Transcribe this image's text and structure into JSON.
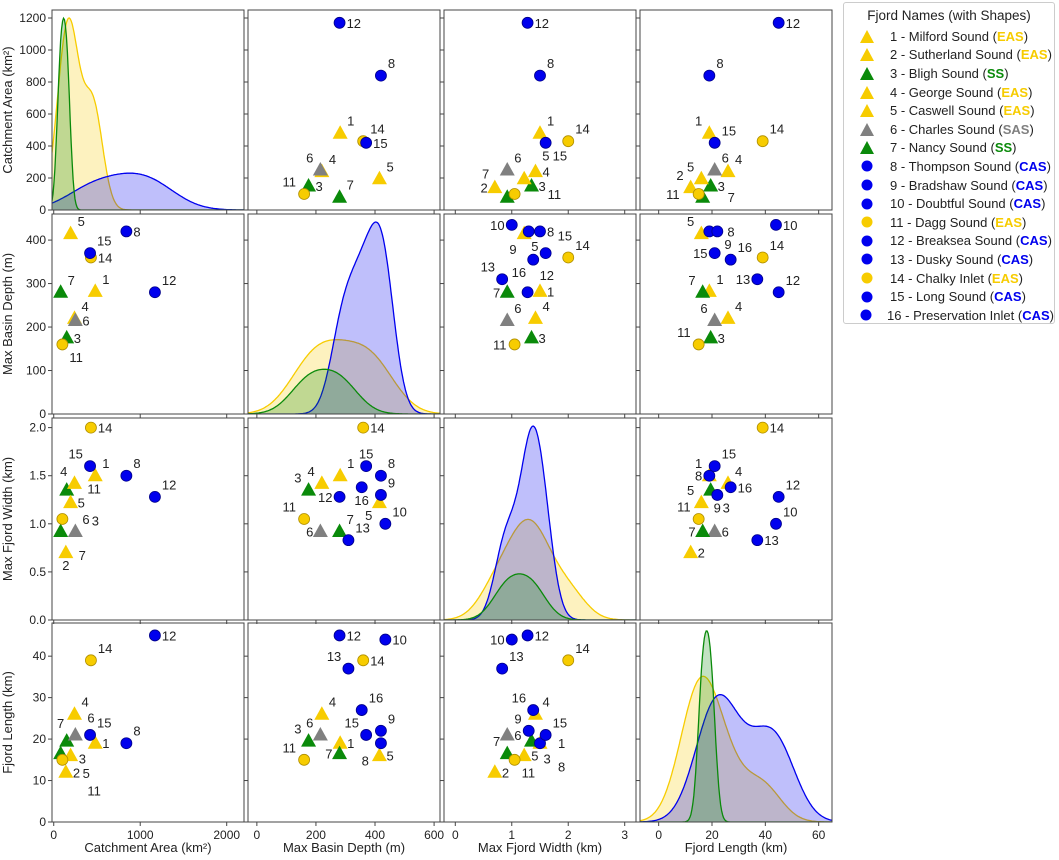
{
  "chart_data": {
    "type": "scatter",
    "title": "",
    "variables": [
      "Catchment Area (km²)",
      "Max Basin Depth (m)",
      "Max Fjord Width (km)",
      "Fjord Length (km)"
    ],
    "ranges": [
      [
        -20,
        2200
      ],
      [
        -30,
        620
      ],
      [
        -0.2,
        3.2
      ],
      [
        -7,
        65
      ]
    ],
    "ylims": [
      [
        0,
        1250
      ],
      [
        0,
        460
      ],
      [
        0,
        2.1
      ],
      [
        0,
        48
      ]
    ],
    "xticks": [
      [
        0,
        1000,
        2000
      ],
      [
        0,
        200,
        400,
        600
      ],
      [
        0,
        1,
        2,
        3
      ],
      [
        0,
        20,
        40,
        60
      ]
    ],
    "yticks": [
      [
        0,
        200,
        400,
        600,
        800,
        1000,
        1200
      ],
      [
        0,
        100,
        200,
        300,
        400
      ],
      [
        0,
        0.5,
        1.0,
        1.5,
        2.0
      ],
      [
        0,
        10,
        20,
        30,
        40
      ]
    ],
    "ytick_labels": [
      [
        "0",
        "200",
        "400",
        "600",
        "800",
        "1000",
        "1200"
      ],
      [
        "0",
        "100",
        "200",
        "300",
        "400"
      ],
      [
        "0.0",
        "0.5",
        "1.0",
        "1.5",
        "2.0"
      ],
      [
        "0",
        "10",
        "20",
        "30",
        "40"
      ]
    ],
    "groups": {
      "EAS": "#f7cc00",
      "SS": "#0a8a0a",
      "SAS": "#808080",
      "CAS": "#0000ee"
    },
    "kde_groups": [
      "EAS",
      "CAS",
      "SS"
    ],
    "legend": {
      "title": "Fjord Names (with Shapes)",
      "position": "right"
    },
    "fjords": [
      {
        "id": 1,
        "name": "Milford Sound",
        "group": "EAS",
        "shape": "triangle",
        "values": [
          480,
          282,
          1.5,
          19
        ]
      },
      {
        "id": 2,
        "name": "Sutherland Sound",
        "group": "EAS",
        "shape": "triangle",
        "values": [
          140,
          null,
          0.7,
          12
        ]
      },
      {
        "id": 3,
        "name": "Bligh Sound",
        "group": "SS",
        "shape": "triangle",
        "values": [
          150,
          175,
          1.35,
          19.5
        ]
      },
      {
        "id": 4,
        "name": "George Sound",
        "group": "EAS",
        "shape": "triangle",
        "values": [
          240,
          220,
          1.42,
          26
        ]
      },
      {
        "id": 5,
        "name": "Caswell Sound",
        "group": "EAS",
        "shape": "triangle",
        "values": [
          195,
          415,
          1.22,
          16
        ]
      },
      {
        "id": 6,
        "name": "Charles Sound",
        "group": "SAS",
        "shape": "triangle",
        "values": [
          250,
          215,
          0.92,
          21
        ]
      },
      {
        "id": 7,
        "name": "Nancy Sound",
        "group": "SS",
        "shape": "triangle",
        "values": [
          80,
          280,
          0.92,
          16.5
        ]
      },
      {
        "id": 8,
        "name": "Thompson Sound",
        "group": "CAS",
        "shape": "circle",
        "values": [
          840,
          420,
          1.5,
          19
        ]
      },
      {
        "id": 9,
        "name": "Bradshaw Sound",
        "group": "CAS",
        "shape": "circle",
        "values": [
          null,
          420,
          1.3,
          22
        ]
      },
      {
        "id": 10,
        "name": "Doubtful Sound",
        "group": "CAS",
        "shape": "circle",
        "values": [
          null,
          435,
          1.0,
          44
        ]
      },
      {
        "id": 11,
        "name": "Dagg Sound",
        "group": "EAS",
        "shape": "circle",
        "values": [
          100,
          160,
          1.05,
          15
        ]
      },
      {
        "id": 12,
        "name": "Breaksea Sound",
        "group": "CAS",
        "shape": "circle",
        "values": [
          1170,
          280,
          1.28,
          45
        ]
      },
      {
        "id": 13,
        "name": "Dusky Sound",
        "group": "CAS",
        "shape": "circle",
        "values": [
          null,
          310,
          0.83,
          37
        ]
      },
      {
        "id": 14,
        "name": "Chalky Inlet",
        "group": "EAS",
        "shape": "circle",
        "values": [
          430,
          360,
          2.0,
          39
        ]
      },
      {
        "id": 15,
        "name": "Long Sound",
        "group": "CAS",
        "shape": "circle",
        "values": [
          420,
          370,
          1.6,
          21
        ]
      },
      {
        "id": 16,
        "name": "Preservation Inlet",
        "group": "CAS",
        "shape": "circle",
        "values": [
          null,
          355,
          1.38,
          27
        ]
      }
    ]
  }
}
